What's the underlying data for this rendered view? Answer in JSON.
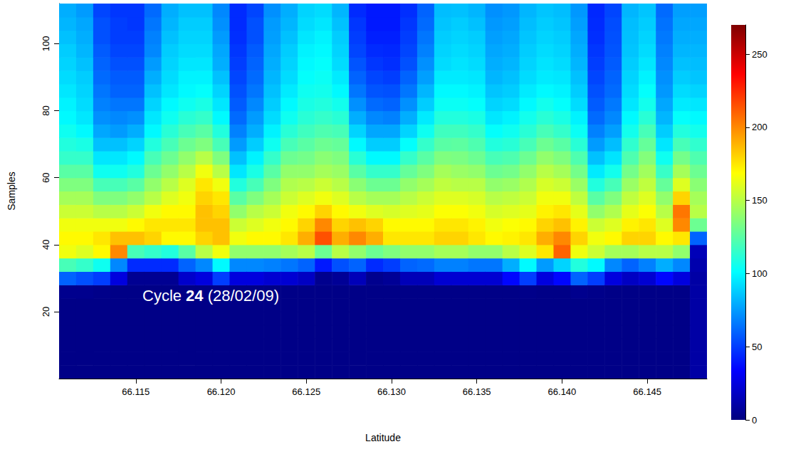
{
  "chart_data": {
    "type": "heatmap",
    "x_label": "Latitude",
    "y_label": "Samples",
    "annotation": {
      "text": "Cycle 24 (28/02/09)",
      "bold": "24"
    },
    "xlim": [
      66.1105,
      66.1485
    ],
    "xticks": [
      66.115,
      {
        "value": 66.12,
        "label": "66.120"
      },
      66.125,
      {
        "value": 66.13,
        "label": "66.130"
      },
      66.135,
      {
        "value": 66.14,
        "label": "66.140"
      },
      66.145
    ],
    "ylim": [
      0,
      112
    ],
    "yticks": [
      20,
      40,
      60,
      80,
      100
    ],
    "colorbar": {
      "range": [
        0,
        270
      ],
      "ticks": [
        0,
        50,
        100,
        150,
        200,
        250
      ]
    },
    "x": [
      66.111,
      66.112,
      66.113,
      66.114,
      66.115,
      66.116,
      66.117,
      66.118,
      66.119,
      66.12,
      66.121,
      66.122,
      66.123,
      66.124,
      66.125,
      66.126,
      66.127,
      66.128,
      66.129,
      66.13,
      66.131,
      66.132,
      66.133,
      66.134,
      66.135,
      66.136,
      66.137,
      66.138,
      66.139,
      66.14,
      66.141,
      66.142,
      66.143,
      66.144,
      66.145,
      66.146,
      66.147,
      66.148
    ],
    "y": [
      2,
      6,
      10,
      14,
      18,
      22,
      26,
      30,
      34,
      38,
      42,
      46,
      50,
      54,
      58,
      62,
      66,
      70,
      74,
      78,
      82,
      86,
      90,
      94,
      98,
      102,
      106,
      110
    ],
    "values": [
      [
        2,
        2,
        2,
        2,
        2,
        2,
        4,
        60,
        120,
        165,
        170,
        165,
        155,
        145,
        135,
        125,
        115,
        110,
        105,
        100,
        98,
        95,
        92,
        90,
        88,
        85,
        82,
        80
      ],
      [
        2,
        2,
        2,
        2,
        2,
        2,
        4,
        55,
        115,
        160,
        170,
        165,
        155,
        145,
        135,
        125,
        115,
        108,
        100,
        95,
        92,
        90,
        88,
        85,
        82,
        80,
        78,
        75
      ],
      [
        2,
        2,
        2,
        2,
        2,
        2,
        3,
        50,
        105,
        170,
        175,
        165,
        150,
        135,
        120,
        105,
        95,
        85,
        78,
        72,
        68,
        65,
        62,
        60,
        58,
        55,
        55,
        52
      ],
      [
        2,
        2,
        2,
        2,
        2,
        2,
        2,
        25,
        70,
        200,
        185,
        165,
        150,
        135,
        120,
        105,
        95,
        85,
        75,
        70,
        65,
        60,
        58,
        55,
        52,
        50,
        50,
        48
      ],
      [
        2,
        2,
        2,
        2,
        2,
        2,
        2,
        5,
        45,
        120,
        185,
        170,
        155,
        140,
        125,
        110,
        100,
        90,
        80,
        72,
        65,
        60,
        58,
        55,
        52,
        50,
        48,
        48
      ],
      [
        2,
        2,
        2,
        2,
        2,
        2,
        2,
        5,
        45,
        115,
        180,
        175,
        165,
        150,
        140,
        130,
        120,
        110,
        100,
        95,
        90,
        85,
        80,
        75,
        70,
        68,
        65,
        62
      ],
      [
        2,
        2,
        2,
        2,
        2,
        2,
        2,
        5,
        45,
        110,
        170,
        175,
        170,
        160,
        150,
        140,
        130,
        120,
        112,
        105,
        100,
        95,
        92,
        90,
        88,
        85,
        82,
        80
      ],
      [
        2,
        2,
        2,
        2,
        2,
        2,
        2,
        20,
        60,
        125,
        170,
        175,
        170,
        165,
        160,
        150,
        140,
        130,
        120,
        112,
        105,
        100,
        98,
        95,
        92,
        90,
        88,
        85
      ],
      [
        2,
        2,
        2,
        2,
        2,
        2,
        2,
        25,
        70,
        150,
        180,
        185,
        185,
        180,
        175,
        165,
        150,
        135,
        125,
        115,
        108,
        102,
        98,
        95,
        92,
        90,
        88,
        85
      ],
      [
        2,
        2,
        2,
        2,
        2,
        2,
        3,
        50,
        100,
        165,
        185,
        185,
        180,
        175,
        165,
        150,
        135,
        120,
        110,
        100,
        95,
        90,
        85,
        80,
        78,
        75,
        72,
        70
      ],
      [
        2,
        2,
        2,
        2,
        2,
        2,
        2,
        25,
        70,
        140,
        165,
        155,
        140,
        125,
        110,
        95,
        85,
        75,
        68,
        62,
        58,
        55,
        52,
        50,
        48,
        46,
        45,
        45
      ],
      [
        2,
        2,
        2,
        2,
        2,
        2,
        2,
        25,
        70,
        140,
        170,
        160,
        150,
        135,
        120,
        108,
        98,
        88,
        80,
        75,
        70,
        65,
        62,
        60,
        58,
        55,
        55,
        52
      ],
      [
        2,
        2,
        2,
        2,
        2,
        2,
        2,
        22,
        68,
        140,
        170,
        165,
        155,
        145,
        135,
        125,
        115,
        105,
        98,
        92,
        88,
        85,
        82,
        80,
        78,
        76,
        75,
        72
      ],
      [
        2,
        2,
        2,
        2,
        2,
        2,
        2,
        22,
        65,
        145,
        175,
        170,
        165,
        155,
        148,
        140,
        130,
        120,
        112,
        105,
        100,
        96,
        92,
        90,
        88,
        85,
        82,
        80
      ],
      [
        2,
        2,
        2,
        2,
        2,
        2,
        2,
        18,
        60,
        150,
        190,
        180,
        170,
        160,
        150,
        140,
        132,
        125,
        118,
        112,
        108,
        105,
        102,
        100,
        98,
        95,
        92,
        90
      ],
      [
        2,
        2,
        2,
        2,
        2,
        2,
        2,
        4,
        40,
        130,
        215,
        200,
        180,
        165,
        155,
        145,
        138,
        130,
        122,
        115,
        110,
        106,
        104,
        102,
        100,
        98,
        95,
        92
      ],
      [
        2,
        2,
        2,
        2,
        2,
        2,
        2,
        6,
        55,
        150,
        190,
        180,
        170,
        160,
        150,
        142,
        135,
        128,
        120,
        112,
        106,
        100,
        96,
        92,
        90,
        88,
        85,
        82
      ],
      [
        2,
        2,
        2,
        2,
        2,
        2,
        2,
        15,
        60,
        140,
        200,
        185,
        165,
        150,
        138,
        125,
        112,
        100,
        90,
        80,
        72,
        65,
        60,
        56,
        52,
        50,
        48,
        45
      ],
      [
        2,
        2,
        2,
        2,
        2,
        2,
        2,
        4,
        45,
        130,
        190,
        180,
        160,
        145,
        130,
        115,
        100,
        88,
        78,
        70,
        62,
        56,
        52,
        48,
        45,
        42,
        40,
        40
      ],
      [
        2,
        2,
        2,
        2,
        2,
        2,
        2,
        6,
        50,
        135,
        175,
        170,
        158,
        145,
        130,
        115,
        100,
        88,
        78,
        68,
        60,
        55,
        50,
        46,
        44,
        42,
        40,
        40
      ],
      [
        2,
        2,
        2,
        2,
        2,
        2,
        2,
        15,
        60,
        140,
        175,
        170,
        160,
        150,
        140,
        128,
        115,
        102,
        90,
        80,
        72,
        65,
        60,
        55,
        52,
        50,
        48,
        46
      ],
      [
        2,
        2,
        2,
        2,
        2,
        2,
        2,
        15,
        62,
        140,
        175,
        170,
        162,
        155,
        145,
        135,
        125,
        115,
        105,
        96,
        88,
        82,
        76,
        72,
        68,
        65,
        62,
        60
      ],
      [
        2,
        2,
        2,
        2,
        2,
        2,
        2,
        22,
        68,
        145,
        180,
        175,
        168,
        160,
        152,
        145,
        135,
        125,
        118,
        110,
        104,
        100,
        96,
        92,
        90,
        88,
        86,
        84
      ],
      [
        2,
        2,
        2,
        2,
        2,
        2,
        2,
        22,
        68,
        145,
        180,
        175,
        168,
        160,
        150,
        142,
        134,
        126,
        118,
        110,
        104,
        100,
        96,
        94,
        92,
        90,
        88,
        85
      ],
      [
        2,
        2,
        2,
        2,
        2,
        2,
        2,
        22,
        65,
        140,
        175,
        172,
        165,
        158,
        150,
        140,
        130,
        122,
        115,
        108,
        102,
        98,
        95,
        92,
        90,
        88,
        85,
        82
      ],
      [
        2,
        2,
        2,
        2,
        2,
        2,
        2,
        22,
        65,
        140,
        170,
        165,
        158,
        150,
        140,
        130,
        120,
        110,
        102,
        95,
        90,
        86,
        82,
        80,
        78,
        76,
        74,
        72
      ],
      [
        2,
        2,
        2,
        2,
        2,
        2,
        2,
        35,
        80,
        150,
        172,
        168,
        160,
        152,
        142,
        132,
        122,
        112,
        105,
        98,
        92,
        88,
        85,
        82,
        80,
        78,
        76,
        74
      ],
      [
        2,
        2,
        2,
        2,
        2,
        2,
        3,
        50,
        100,
        160,
        175,
        170,
        162,
        155,
        148,
        140,
        130,
        120,
        112,
        106,
        100,
        96,
        92,
        90,
        88,
        86,
        84,
        82
      ],
      [
        2,
        2,
        2,
        2,
        2,
        2,
        2,
        25,
        75,
        175,
        190,
        180,
        172,
        165,
        158,
        150,
        140,
        130,
        120,
        112,
        106,
        100,
        96,
        94,
        92,
        90,
        88,
        86
      ],
      [
        2,
        2,
        2,
        2,
        2,
        2,
        2,
        35,
        90,
        210,
        200,
        185,
        175,
        165,
        155,
        145,
        135,
        125,
        115,
        108,
        102,
        98,
        95,
        92,
        90,
        88,
        86,
        84
      ],
      [
        2,
        2,
        2,
        2,
        2,
        2,
        4,
        60,
        110,
        165,
        180,
        172,
        162,
        152,
        142,
        132,
        122,
        112,
        104,
        98,
        92,
        88,
        85,
        82,
        80,
        78,
        76,
        74
      ],
      [
        2,
        2,
        2,
        2,
        2,
        2,
        3,
        50,
        100,
        155,
        165,
        155,
        140,
        125,
        110,
        96,
        85,
        75,
        68,
        62,
        58,
        55,
        52,
        50,
        48,
        46,
        45,
        44
      ],
      [
        2,
        2,
        2,
        2,
        2,
        2,
        2,
        25,
        70,
        145,
        170,
        160,
        148,
        135,
        120,
        106,
        94,
        84,
        76,
        70,
        66,
        62,
        60,
        58,
        56,
        55,
        54,
        52
      ],
      [
        2,
        2,
        2,
        2,
        2,
        2,
        2,
        18,
        60,
        145,
        180,
        172,
        162,
        152,
        142,
        132,
        122,
        114,
        106,
        100,
        95,
        92,
        90,
        88,
        86,
        85,
        84,
        82
      ],
      [
        2,
        2,
        2,
        2,
        2,
        2,
        2,
        22,
        68,
        150,
        180,
        175,
        168,
        160,
        152,
        144,
        136,
        128,
        120,
        112,
        106,
        102,
        98,
        95,
        92,
        90,
        88,
        86
      ],
      [
        2,
        2,
        2,
        2,
        2,
        2,
        2,
        35,
        80,
        150,
        170,
        160,
        150,
        140,
        128,
        116,
        105,
        95,
        88,
        82,
        78,
        74,
        72,
        70,
        68,
        66,
        64,
        62
      ],
      [
        2,
        2,
        2,
        2,
        2,
        2,
        2,
        25,
        70,
        140,
        175,
        200,
        205,
        180,
        160,
        145,
        132,
        120,
        110,
        102,
        96,
        92,
        88,
        85,
        82,
        80,
        78,
        76
      ],
      [
        10,
        10,
        10,
        10,
        10,
        10,
        10,
        10,
        12,
        15,
        60,
        130,
        150,
        145,
        138,
        130,
        122,
        114,
        106,
        100,
        95,
        90,
        86,
        84,
        82,
        80,
        78,
        76
      ]
    ]
  }
}
